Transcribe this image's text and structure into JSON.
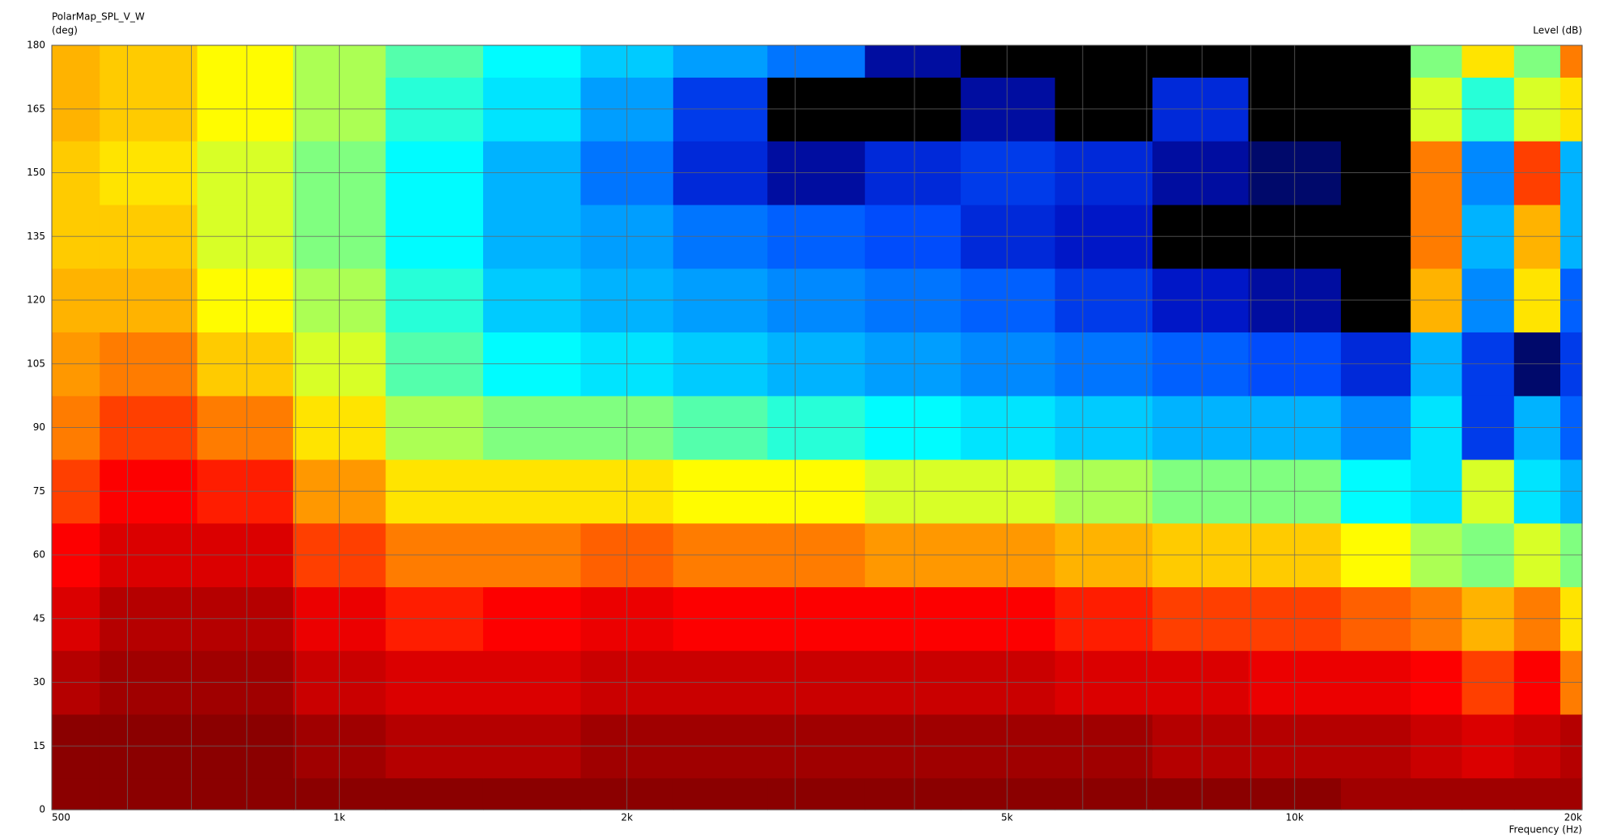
{
  "chart_data": {
    "type": "heatmap",
    "title": "PolarMap_SPL_V_W",
    "y_label": "(deg)",
    "z_label": "Level (dB)",
    "x_label": "Frequency (Hz)",
    "x_scale": "log",
    "colormap": "jet",
    "grid": true,
    "xlim": [
      500,
      20000
    ],
    "ylim": [
      0,
      180
    ],
    "zlim": [
      -36,
      0
    ],
    "xticks": [
      500,
      {
        "value": 1000,
        "label": "1k"
      },
      {
        "value": 2000,
        "label": "2k"
      },
      {
        "value": 5000,
        "label": "5k"
      },
      {
        "value": 10000,
        "label": "10k"
      },
      {
        "value": 20000,
        "label": "20k"
      }
    ],
    "xminor": [
      600,
      700,
      800,
      900,
      3000,
      4000,
      6000,
      7000,
      8000,
      9000
    ],
    "yticks": [
      0,
      15,
      30,
      45,
      60,
      75,
      90,
      105,
      120,
      135,
      150,
      165,
      180
    ],
    "x": [
      500,
      630,
      800,
      1000,
      1250,
      1600,
      2000,
      2500,
      3150,
      4000,
      5000,
      6300,
      8000,
      10000,
      12500,
      14000,
      16000,
      18000,
      20000
    ],
    "y": [
      0,
      15,
      30,
      45,
      60,
      75,
      90,
      105,
      120,
      135,
      150,
      165,
      180
    ],
    "z": [
      [
        0,
        0,
        0,
        0,
        0,
        0,
        0,
        0,
        0,
        0,
        0,
        0,
        0,
        0,
        -1,
        -1,
        -1,
        -1,
        -1
      ],
      [
        0,
        0,
        0,
        -1,
        -2,
        -2,
        -1,
        -1,
        -1,
        -1,
        -1,
        -1,
        -2,
        -2,
        -2,
        -3,
        -4,
        -3,
        -2
      ],
      [
        -2,
        -1,
        -1,
        -3,
        -4,
        -4,
        -3,
        -3,
        -3,
        -3,
        -3,
        -4,
        -4,
        -5,
        -5,
        -6,
        -8,
        -6,
        -10
      ],
      [
        -4,
        -2,
        -2,
        -5,
        -7,
        -6,
        -5,
        -6,
        -6,
        -6,
        -6,
        -7,
        -8,
        -8,
        -9,
        -10,
        -12,
        -10,
        -14
      ],
      [
        -6,
        -4,
        -4,
        -8,
        -10,
        -10,
        -9,
        -10,
        -10,
        -11,
        -11,
        -12,
        -13,
        -13,
        -15,
        -17,
        -18,
        -16,
        -18
      ],
      [
        -8,
        -6,
        -7,
        -11,
        -14,
        -14,
        -14,
        -15,
        -15,
        -16,
        -16,
        -17,
        -18,
        -18,
        -21,
        -22,
        -16,
        -22,
        -24
      ],
      [
        -10,
        -8,
        -10,
        -14,
        -17,
        -18,
        -18,
        -19,
        -20,
        -21,
        -22,
        -23,
        -24,
        -24,
        -26,
        -22,
        -30,
        -24,
        -28
      ],
      [
        -11,
        -10,
        -13,
        -16,
        -19,
        -21,
        -22,
        -23,
        -24,
        -25,
        -26,
        -27,
        -28,
        -29,
        -31,
        -24,
        -30,
        -34,
        -30
      ],
      [
        -12,
        -12,
        -15,
        -17,
        -20,
        -23,
        -24,
        -25,
        -26,
        -27,
        -28,
        -30,
        -32,
        -33,
        -36,
        -12,
        -26,
        -14,
        -28
      ],
      [
        -13,
        -13,
        -16,
        -18,
        -21,
        -24,
        -25,
        -27,
        -28,
        -29,
        -31,
        -32,
        -36,
        -36,
        -36,
        -10,
        -24,
        -12,
        -24
      ],
      [
        -13,
        -14,
        -16,
        -18,
        -21,
        -24,
        -27,
        -31,
        -33,
        -31,
        -30,
        -31,
        -33,
        -34,
        -36,
        -10,
        -26,
        -8,
        -24
      ],
      [
        -12,
        -13,
        -15,
        -17,
        -20,
        -22,
        -25,
        -30,
        -36,
        -36,
        -33,
        -36,
        -31,
        -36,
        -36,
        -16,
        -20,
        -16,
        -14
      ],
      [
        -12,
        -13,
        -15,
        -17,
        -19,
        -21,
        -23,
        -25,
        -27,
        -33,
        -36,
        -36,
        -36,
        -36,
        -36,
        -18,
        -14,
        -18,
        -10
      ]
    ]
  }
}
